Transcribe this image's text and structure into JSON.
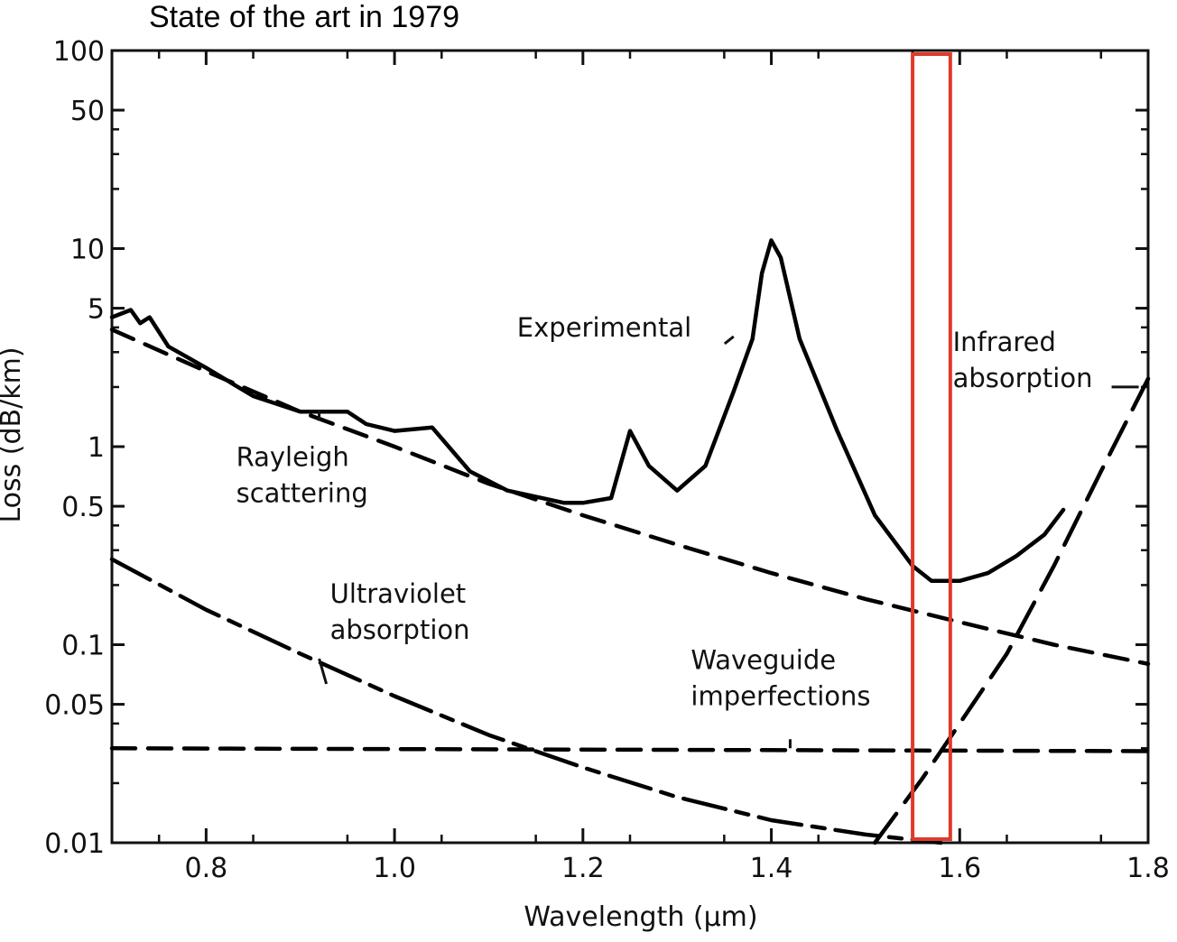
{
  "chart_data": {
    "type": "line",
    "title": "State of the art in 1979",
    "xlabel": "Wavelength (μm)",
    "ylabel": "Loss (dB/km)",
    "y_scale": "log",
    "xlim": [
      0.7,
      1.8
    ],
    "ylim": [
      0.01,
      100
    ],
    "x_ticks": [
      0.8,
      1.0,
      1.2,
      1.4,
      1.6,
      1.8
    ],
    "x_tick_labels": [
      "0.8",
      "1.0",
      "1.2",
      "1.4",
      "1.6",
      "1.8"
    ],
    "y_ticks": [
      0.01,
      0.05,
      0.1,
      0.5,
      1,
      5,
      10,
      50,
      100
    ],
    "y_tick_labels": [
      "0.01",
      "0.05",
      "0.1",
      "0.5",
      "1",
      "5",
      "10",
      "50",
      "100"
    ],
    "grid": false,
    "series": [
      {
        "name": "Experimental",
        "style": "solid",
        "color": "#000000",
        "x": [
          0.7,
          0.72,
          0.73,
          0.74,
          0.76,
          0.8,
          0.85,
          0.9,
          0.95,
          0.97,
          1.0,
          1.04,
          1.08,
          1.12,
          1.18,
          1.2,
          1.23,
          1.25,
          1.27,
          1.3,
          1.33,
          1.36,
          1.38,
          1.39,
          1.4,
          1.41,
          1.43,
          1.47,
          1.51,
          1.55,
          1.57,
          1.6,
          1.63,
          1.66,
          1.69,
          1.71
        ],
        "y": [
          4.5,
          4.9,
          4.2,
          4.5,
          3.2,
          2.5,
          1.8,
          1.5,
          1.5,
          1.3,
          1.2,
          1.25,
          0.75,
          0.6,
          0.52,
          0.52,
          0.55,
          1.2,
          0.8,
          0.6,
          0.8,
          1.9,
          3.5,
          7.5,
          11.0,
          9.0,
          3.5,
          1.2,
          0.45,
          0.25,
          0.21,
          0.21,
          0.23,
          0.28,
          0.36,
          0.48
        ]
      },
      {
        "name": "Rayleigh scattering",
        "style": "dashed",
        "color": "#000000",
        "x": [
          0.7,
          0.8,
          0.9,
          1.0,
          1.1,
          1.2,
          1.3,
          1.4,
          1.5,
          1.6,
          1.7,
          1.8
        ],
        "y": [
          3.9,
          2.4,
          1.5,
          1.0,
          0.65,
          0.45,
          0.32,
          0.23,
          0.17,
          0.13,
          0.1,
          0.08
        ]
      },
      {
        "name": "Ultraviolet absorption",
        "style": "dash-dot",
        "color": "#000000",
        "x": [
          0.7,
          0.8,
          0.9,
          1.0,
          1.1,
          1.2,
          1.3,
          1.4,
          1.5,
          1.58
        ],
        "y": [
          0.27,
          0.15,
          0.09,
          0.055,
          0.035,
          0.024,
          0.017,
          0.013,
          0.011,
          0.01
        ]
      },
      {
        "name": "Waveguide imperfections",
        "style": "dashed",
        "color": "#000000",
        "x": [
          0.7,
          1.8
        ],
        "y": [
          0.03,
          0.029
        ]
      },
      {
        "name": "Infrared absorption",
        "style": "long-dash",
        "color": "#000000",
        "x": [
          1.51,
          1.56,
          1.6,
          1.65,
          1.7,
          1.75,
          1.8
        ],
        "y": [
          0.01,
          0.021,
          0.04,
          0.09,
          0.25,
          0.75,
          2.2
        ]
      }
    ],
    "annotations": [
      {
        "lines": [
          "Experimental"
        ],
        "anchor": [
          1.36,
          3.6
        ]
      },
      {
        "lines": [
          "Infrared",
          "absorption"
        ],
        "anchor": [
          1.79,
          2.0
        ]
      },
      {
        "lines": [
          "Rayleigh",
          "scattering"
        ],
        "anchor": [
          0.92,
          1.35
        ]
      },
      {
        "lines": [
          "Ultraviolet",
          "absorption"
        ],
        "anchor": [
          0.92,
          0.085
        ]
      },
      {
        "lines": [
          "Waveguide",
          "imperfections"
        ],
        "anchor": [
          1.42,
          0.03
        ]
      }
    ],
    "highlight_box": {
      "color": "#e03a2a",
      "x_range": [
        1.55,
        1.59
      ],
      "y_range": [
        0.01,
        100
      ]
    }
  }
}
